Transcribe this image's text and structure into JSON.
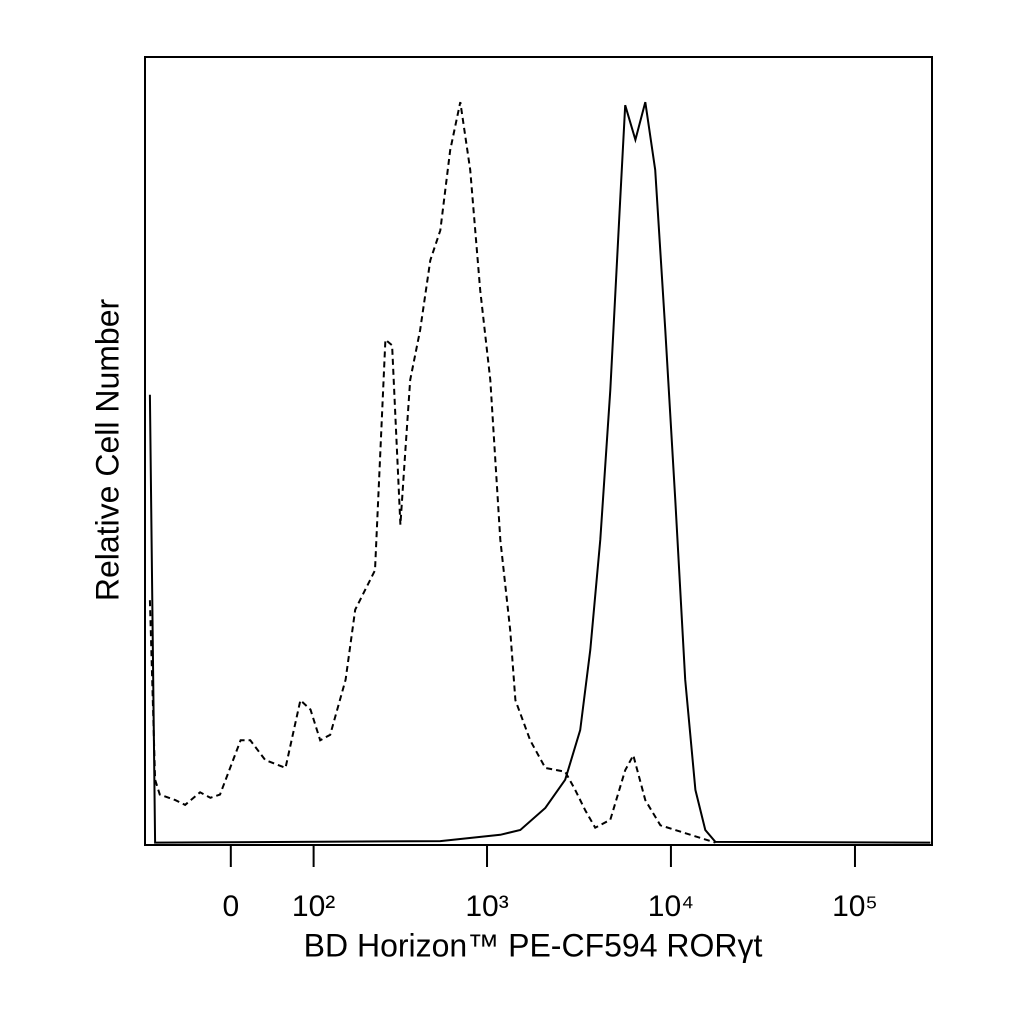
{
  "chart_data": {
    "type": "histogram-overlay",
    "xlabel": "BD Horizon™ PE-CF594 RORγt",
    "ylabel": "Relative Cell Number",
    "xscale": "biexponential",
    "xlim": [
      -100,
      262144
    ],
    "ylim": [
      0,
      100
    ],
    "xticks": [
      0,
      {
        "value": 100,
        "label": "10²"
      },
      {
        "value": 1000,
        "label": "10³"
      },
      {
        "value": 10000,
        "label": "10⁴"
      },
      {
        "value": 100000,
        "label": "10⁵"
      }
    ],
    "series": [
      {
        "style": "dashed",
        "color": "#000000",
        "x": [
          -97,
          -89,
          -82,
          -61,
          -49,
          -32,
          -21,
          -11,
          10,
          20,
          36,
          60,
          80,
          95,
          111,
          129,
          161,
          184,
          240,
          275,
          300,
          334,
          356,
          379,
          430,
          489,
          555,
          629,
          715,
          810,
          918,
          1042,
          1181,
          1337,
          1427,
          1719,
          2077,
          2664,
          3020,
          3424,
          3876,
          4684,
          5640,
          6246,
          7256,
          8761,
          11240,
          14445,
          17450
        ],
        "values": [
          31.1,
          8.3,
          6.4,
          5.7,
          5.1,
          6.7,
          6.0,
          6.4,
          13.3,
          13.3,
          10.8,
          9.8,
          18.4,
          17.2,
          13.3,
          14.0,
          21.0,
          29.9,
          34.9,
          64.2,
          63.5,
          40.7,
          50.2,
          59.1,
          65.4,
          74.3,
          78.1,
          88.3,
          94.4,
          85.8,
          70.5,
          59.1,
          38.8,
          27.3,
          18.4,
          13.3,
          9.8,
          9.3,
          7.0,
          4.4,
          2.2,
          3.2,
          9.5,
          11.4,
          5.7,
          2.5,
          1.7,
          0.9,
          0.3
        ]
      },
      {
        "style": "solid",
        "color": "#000000",
        "x": [
          -97,
          -89,
          555,
          1181,
          1518,
          2077,
          2664,
          3215,
          3646,
          4133,
          4684,
          5302,
          5640,
          6407,
          7256,
          8218,
          9322,
          10564,
          11961,
          13577,
          15371,
          17450,
          256500
        ],
        "values": [
          57.2,
          0.3,
          0.5,
          1.3,
          1.9,
          4.7,
          8.3,
          14.6,
          24.8,
          38.8,
          57.8,
          82.0,
          94.0,
          89.6,
          94.4,
          85.8,
          65.4,
          43.8,
          21.0,
          7.0,
          1.9,
          0.4,
          0.3
        ]
      }
    ]
  }
}
